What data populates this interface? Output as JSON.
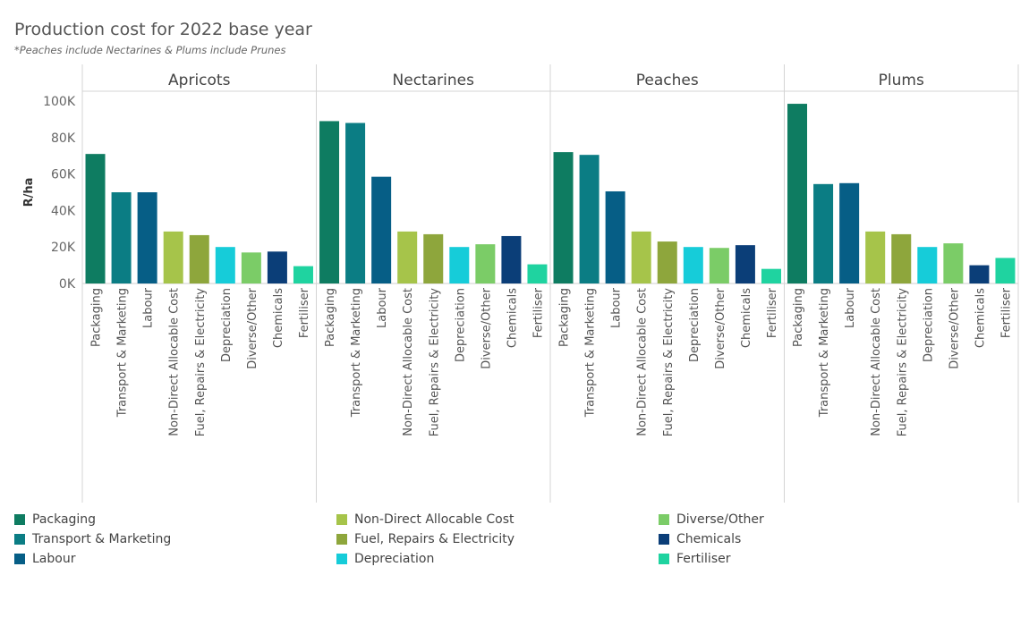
{
  "title": "Production cost for 2022 base year",
  "subtitle": "*Peaches include Nectarines & Plums include Prunes",
  "colors": {
    "Packaging": "#0e7c61",
    "Transport & Marketing": "#0b7d84",
    "Labour": "#065e86",
    "Non-Direct Allocable Cost": "#a6c44a",
    "Fuel, Repairs & Electricity": "#8ea63c",
    "Depreciation": "#16ccd9",
    "Diverse/Other": "#7bcc67",
    "Chemicals": "#0b3e78",
    "Fertiliser": "#1fd3a0"
  },
  "chart_data": {
    "type": "bar",
    "title": "Production cost for 2022 base year",
    "ylabel": "R/ha",
    "xlabel": "",
    "ylim": [
      0,
      100000
    ],
    "yticks": [
      0,
      20000,
      40000,
      60000,
      80000,
      100000
    ],
    "ytick_labels": [
      "0K",
      "20K",
      "40K",
      "60K",
      "80K",
      "100K"
    ],
    "categories": [
      "Packaging",
      "Transport & Marketing",
      "Labour",
      "Non-Direct Allocable Cost",
      "Fuel, Repairs & Electricity",
      "Depreciation",
      "Diverse/Other",
      "Chemicals",
      "Fertiliser"
    ],
    "panels": [
      {
        "name": "Apricots",
        "values": [
          71000,
          50000,
          50000,
          28500,
          26500,
          20000,
          17000,
          17500,
          9500
        ]
      },
      {
        "name": "Nectarines",
        "values": [
          89000,
          88000,
          58500,
          28500,
          27000,
          20000,
          21500,
          26000,
          10500
        ]
      },
      {
        "name": "Peaches",
        "values": [
          72000,
          70500,
          50500,
          28500,
          23000,
          20000,
          19500,
          21000,
          8000
        ]
      },
      {
        "name": "Plums",
        "values": [
          98500,
          54500,
          55000,
          28500,
          27000,
          20000,
          22000,
          10000,
          14000
        ]
      }
    ]
  },
  "legend": {
    "columns": [
      [
        "Packaging",
        "Transport & Marketing",
        "Labour"
      ],
      [
        "Non-Direct Allocable Cost",
        "Fuel, Repairs & Electricity",
        "Depreciation"
      ],
      [
        "Diverse/Other",
        "Chemicals",
        "Fertiliser"
      ]
    ]
  }
}
